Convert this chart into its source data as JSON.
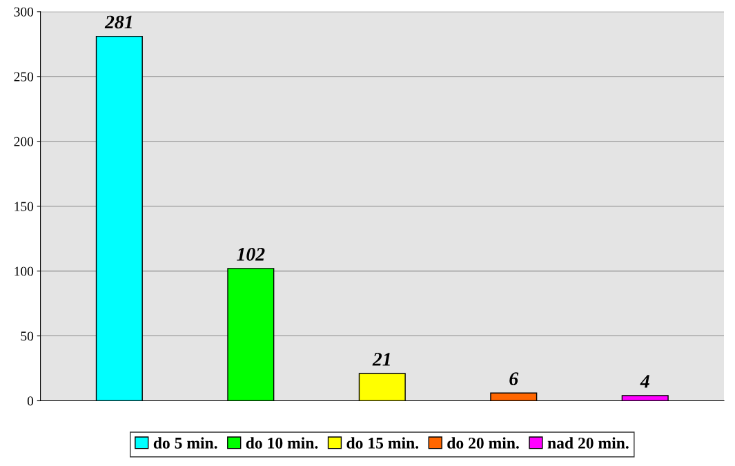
{
  "chart_data": {
    "type": "bar",
    "categories": [
      null,
      null,
      null,
      null,
      null
    ],
    "series": [
      {
        "name": "do 5 min.",
        "color": "#00ffff",
        "values": [
          281,
          null,
          null,
          null,
          null
        ]
      },
      {
        "name": "do 10 min.",
        "color": "#00ff00",
        "values": [
          null,
          102,
          null,
          null,
          null
        ]
      },
      {
        "name": "do 15 min.",
        "color": "#ffff00",
        "values": [
          null,
          null,
          21,
          null,
          null
        ]
      },
      {
        "name": "do 20 min.",
        "color": "#ff6600",
        "values": [
          null,
          null,
          null,
          6,
          null
        ]
      },
      {
        "name": "nad 20 min.",
        "color": "#ff00ff",
        "values": [
          null,
          null,
          null,
          null,
          4
        ]
      }
    ],
    "ylim": [
      0,
      300
    ],
    "yticks": [
      0,
      50,
      100,
      150,
      200,
      250,
      300
    ],
    "grid": "y",
    "legend": "bottom",
    "data_labels": true
  }
}
